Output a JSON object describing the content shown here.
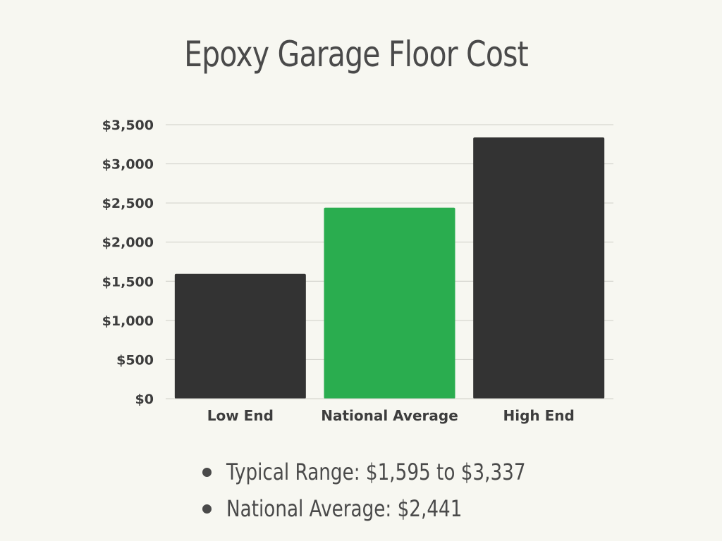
{
  "chart_data": {
    "type": "bar",
    "title": "Epoxy Garage Floor Cost",
    "categories": [
      "Low End",
      "National Average",
      "High End"
    ],
    "values": [
      1595,
      2441,
      3337
    ],
    "ylim": [
      0,
      3500
    ],
    "yticks": [
      0,
      500,
      1000,
      1500,
      2000,
      2500,
      3000,
      3500
    ],
    "ytick_labels": [
      "$0",
      "$500",
      "$1,000",
      "$1,500",
      "$2,000",
      "$2,500",
      "$3,000",
      "$3,500"
    ],
    "xlabel": "",
    "ylabel": "",
    "grid": true,
    "bar_colors": [
      "#333333",
      "#2aad4f",
      "#333333"
    ],
    "grid_color": "#cfcfc8"
  },
  "summary": {
    "items": [
      "Typical Range: $1,595 to $3,337",
      "National Average: $2,441"
    ]
  },
  "colors": {
    "background": "#f7f7f1",
    "text": "#4a4a4a"
  }
}
